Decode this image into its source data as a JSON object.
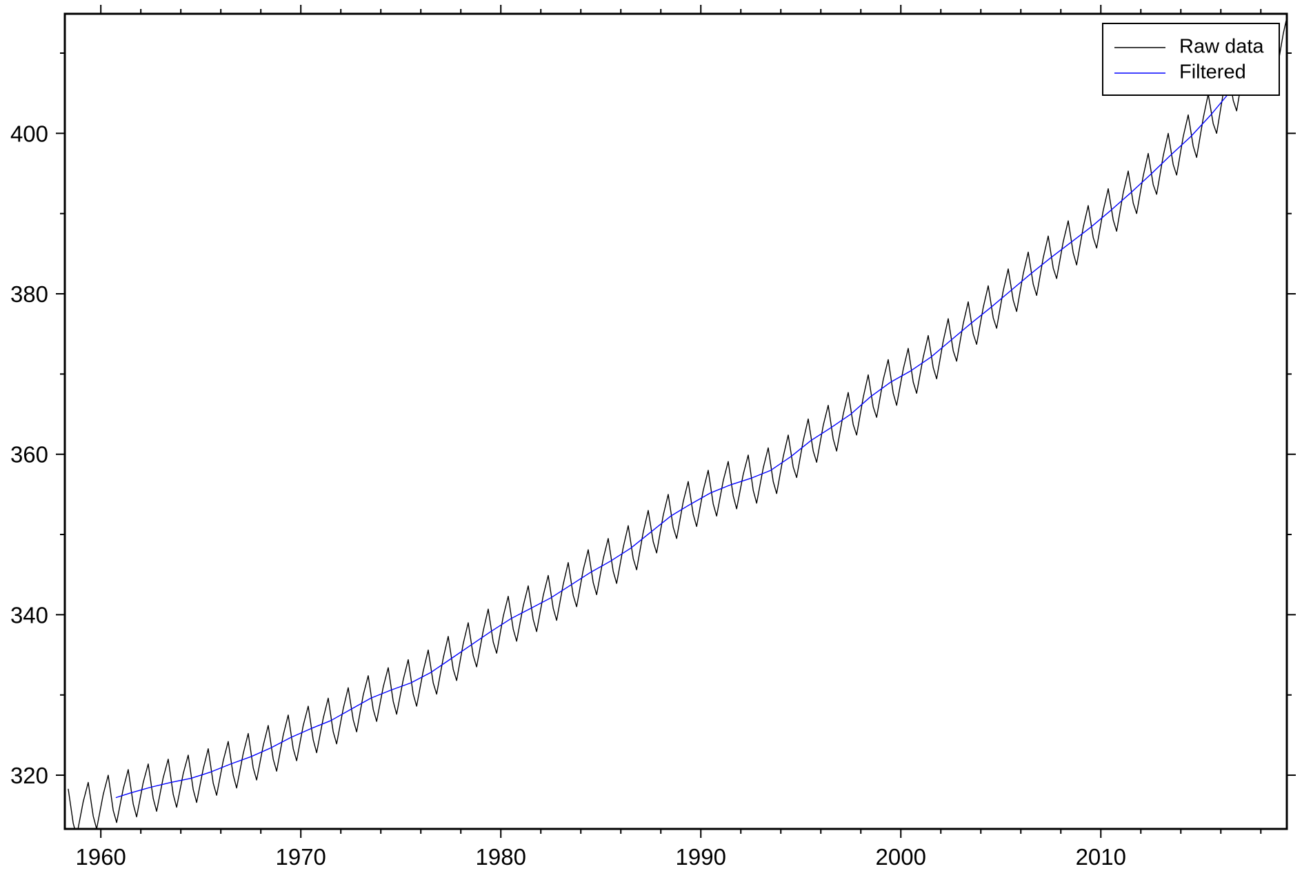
{
  "chart_data": {
    "type": "line",
    "xlim": [
      1958.2,
      2019.3
    ],
    "ylim": [
      313.3,
      414.9
    ],
    "xticks": [
      1960,
      1970,
      1980,
      1990,
      2000,
      2010
    ],
    "xminorticks": [
      1962,
      1964,
      1966,
      1968,
      1972,
      1974,
      1976,
      1978,
      1982,
      1984,
      1986,
      1988,
      1992,
      1994,
      1996,
      1998,
      2002,
      2004,
      2006,
      2008,
      2012,
      2014,
      2016,
      2018
    ],
    "yticks": [
      320,
      340,
      360,
      380,
      400
    ],
    "yminorticks": [
      330,
      350,
      370,
      390,
      410
    ],
    "grid": false,
    "legend": "top-right",
    "series": [
      {
        "name": "Raw data",
        "color": "#000000",
        "x": [
          1958.37,
          1958.62,
          1958.79,
          1959.12,
          1959.37,
          1959.62,
          1959.79,
          1960.12,
          1960.37,
          1960.62,
          1960.79,
          1961.12,
          1961.37,
          1961.62,
          1961.79,
          1962.12,
          1962.37,
          1962.62,
          1962.79,
          1963.12,
          1963.37,
          1963.62,
          1963.79,
          1964.12,
          1964.37,
          1964.62,
          1964.79,
          1965.12,
          1965.37,
          1965.62,
          1965.79,
          1966.12,
          1966.37,
          1966.62,
          1966.79,
          1967.12,
          1967.37,
          1967.62,
          1967.79,
          1968.12,
          1968.37,
          1968.62,
          1968.79,
          1969.12,
          1969.37,
          1969.62,
          1969.79,
          1970.12,
          1970.37,
          1970.62,
          1970.79,
          1971.12,
          1971.37,
          1971.62,
          1971.79,
          1972.12,
          1972.37,
          1972.62,
          1972.79,
          1973.12,
          1973.37,
          1973.62,
          1973.79,
          1974.12,
          1974.37,
          1974.62,
          1974.79,
          1975.12,
          1975.37,
          1975.62,
          1975.79,
          1976.12,
          1976.37,
          1976.62,
          1976.79,
          1977.12,
          1977.37,
          1977.62,
          1977.79,
          1978.12,
          1978.37,
          1978.62,
          1978.79,
          1979.12,
          1979.37,
          1979.62,
          1979.79,
          1980.12,
          1980.37,
          1980.62,
          1980.79,
          1981.12,
          1981.37,
          1981.62,
          1981.79,
          1982.12,
          1982.37,
          1982.62,
          1982.79,
          1983.12,
          1983.37,
          1983.62,
          1983.79,
          1984.12,
          1984.37,
          1984.62,
          1984.79,
          1985.12,
          1985.37,
          1985.62,
          1985.79,
          1986.12,
          1986.37,
          1986.62,
          1986.79,
          1987.12,
          1987.37,
          1987.62,
          1987.79,
          1988.12,
          1988.37,
          1988.62,
          1988.79,
          1989.12,
          1989.37,
          1989.62,
          1989.79,
          1990.12,
          1990.37,
          1990.62,
          1990.79,
          1991.12,
          1991.37,
          1991.62,
          1991.79,
          1992.12,
          1992.37,
          1992.62,
          1992.79,
          1993.12,
          1993.37,
          1993.62,
          1993.79,
          1994.12,
          1994.37,
          1994.62,
          1994.79,
          1995.12,
          1995.37,
          1995.62,
          1995.79,
          1996.12,
          1996.37,
          1996.62,
          1996.79,
          1997.12,
          1997.37,
          1997.62,
          1997.79,
          1998.12,
          1998.37,
          1998.62,
          1998.79,
          1999.12,
          1999.37,
          1999.62,
          1999.79,
          2000.12,
          2000.37,
          2000.62,
          2000.79,
          2001.12,
          2001.37,
          2001.62,
          2001.79,
          2002.12,
          2002.37,
          2002.62,
          2002.79,
          2003.12,
          2003.37,
          2003.62,
          2003.79,
          2004.12,
          2004.37,
          2004.62,
          2004.79,
          2005.12,
          2005.37,
          2005.62,
          2005.79,
          2006.12,
          2006.37,
          2006.62,
          2006.79,
          2007.12,
          2007.37,
          2007.62,
          2007.79,
          2008.12,
          2008.37,
          2008.62,
          2008.79,
          2009.12,
          2009.37,
          2009.62,
          2009.79,
          2010.12,
          2010.37,
          2010.62,
          2010.79,
          2011.12,
          2011.37,
          2011.62,
          2011.79,
          2012.12,
          2012.37,
          2012.62,
          2012.79,
          2013.12,
          2013.37,
          2013.62,
          2013.79,
          2014.12,
          2014.37,
          2014.62,
          2014.79,
          2015.12,
          2015.37,
          2015.62,
          2015.79,
          2016.12,
          2016.37,
          2016.62,
          2016.79,
          2017.12,
          2017.37,
          2017.62,
          2017.79,
          2018.12,
          2018.37,
          2018.62,
          2018.79,
          2019.12,
          2019.37
        ],
        "values": [
          318.3,
          314.0,
          312.4,
          316.7,
          319.1,
          314.9,
          313.3,
          317.6,
          320.0,
          315.6,
          314.1,
          318.3,
          320.7,
          316.4,
          314.8,
          319.1,
          321.4,
          317.1,
          315.5,
          319.7,
          322.0,
          317.6,
          316.0,
          320.2,
          322.5,
          318.2,
          316.6,
          320.8,
          323.3,
          319.0,
          317.5,
          321.8,
          324.2,
          320.0,
          318.4,
          322.7,
          325.2,
          320.9,
          319.4,
          323.7,
          326.2,
          322.0,
          320.5,
          325.0,
          327.5,
          323.3,
          321.8,
          326.2,
          328.6,
          324.4,
          322.8,
          327.1,
          329.6,
          325.4,
          323.9,
          328.3,
          330.9,
          326.9,
          325.4,
          330.0,
          332.4,
          328.2,
          326.7,
          331.0,
          333.4,
          329.2,
          327.6,
          331.9,
          334.4,
          330.1,
          328.6,
          333.0,
          335.6,
          331.5,
          330.1,
          334.6,
          337.3,
          333.2,
          331.8,
          336.4,
          339.0,
          334.9,
          333.5,
          338.0,
          340.7,
          336.6,
          335.2,
          339.8,
          342.3,
          338.2,
          336.7,
          341.1,
          343.6,
          339.4,
          337.9,
          342.4,
          344.9,
          340.8,
          339.3,
          343.8,
          346.5,
          342.4,
          341.0,
          345.6,
          348.1,
          344.0,
          342.5,
          347.0,
          349.5,
          345.4,
          343.9,
          348.4,
          351.1,
          347.0,
          345.6,
          350.3,
          353.0,
          349.1,
          347.7,
          352.4,
          355.0,
          350.9,
          349.5,
          354.1,
          356.6,
          352.5,
          351.0,
          355.5,
          358.0,
          353.8,
          352.3,
          356.7,
          359.1,
          354.8,
          353.2,
          357.5,
          359.9,
          355.5,
          353.9,
          358.3,
          360.8,
          356.6,
          355.1,
          359.7,
          362.4,
          358.4,
          357.1,
          361.7,
          364.4,
          360.4,
          359.0,
          363.6,
          366.1,
          361.9,
          360.4,
          365.0,
          367.7,
          363.7,
          362.4,
          367.1,
          369.9,
          365.9,
          364.6,
          369.3,
          371.8,
          367.6,
          366.1,
          370.6,
          373.2,
          369.0,
          367.6,
          372.1,
          374.8,
          370.8,
          369.4,
          374.1,
          376.9,
          372.9,
          371.6,
          376.3,
          379.0,
          375.0,
          373.7,
          378.3,
          381.0,
          377.0,
          375.7,
          380.4,
          383.1,
          379.2,
          377.8,
          382.5,
          385.2,
          381.2,
          379.8,
          384.5,
          387.2,
          383.2,
          381.9,
          386.5,
          389.1,
          385.1,
          383.6,
          388.3,
          391.0,
          387.0,
          385.7,
          390.4,
          393.1,
          389.2,
          387.8,
          392.6,
          395.3,
          391.3,
          390.0,
          394.7,
          397.5,
          393.6,
          392.4,
          397.2,
          400.0,
          396.1,
          394.8,
          399.6,
          402.3,
          398.4,
          397.0,
          401.9,
          404.9,
          401.2,
          400.0,
          405.0,
          407.9,
          404.1,
          402.8,
          407.7,
          410.4,
          406.5,
          405.1,
          409.9,
          412.7,
          408.8,
          407.6,
          412.4,
          415.2
        ]
      },
      {
        "name": "Filtered",
        "color": "#0000ff",
        "x": [
          1960.75,
          1961.5,
          1962.5,
          1963.5,
          1964.5,
          1965.5,
          1966.5,
          1967.5,
          1968.5,
          1969.5,
          1970.5,
          1971.5,
          1972.5,
          1973.5,
          1974.5,
          1975.5,
          1976.5,
          1977.5,
          1978.5,
          1979.5,
          1980.5,
          1981.5,
          1982.5,
          1983.5,
          1984.5,
          1985.5,
          1986.5,
          1987.5,
          1988.5,
          1989.5,
          1990.5,
          1991.5,
          1992.5,
          1993.5,
          1994.5,
          1995.5,
          1996.5,
          1997.5,
          1998.5,
          1999.5,
          2000.5,
          2001.5,
          2002.5,
          2003.5,
          2004.5,
          2005.5,
          2006.5,
          2007.5,
          2008.5,
          2009.5,
          2010.5,
          2011.5,
          2012.5,
          2013.5,
          2014.5,
          2015.5,
          2016.5,
          2017.5
        ],
        "values": [
          317.2,
          317.8,
          318.5,
          319.1,
          319.6,
          320.4,
          321.4,
          322.3,
          323.4,
          324.7,
          325.8,
          326.8,
          328.2,
          329.6,
          330.6,
          331.5,
          332.8,
          334.5,
          336.2,
          337.9,
          339.5,
          340.8,
          342.1,
          343.7,
          345.3,
          346.7,
          348.3,
          350.3,
          352.3,
          353.8,
          355.2,
          356.2,
          357.0,
          358.0,
          359.7,
          361.7,
          363.3,
          365.0,
          367.2,
          369.0,
          370.4,
          372.1,
          374.2,
          376.3,
          378.3,
          380.4,
          382.5,
          384.5,
          386.4,
          388.3,
          390.4,
          392.6,
          394.9,
          397.3,
          399.6,
          402.3,
          405.3,
          407.7
        ]
      }
    ]
  }
}
